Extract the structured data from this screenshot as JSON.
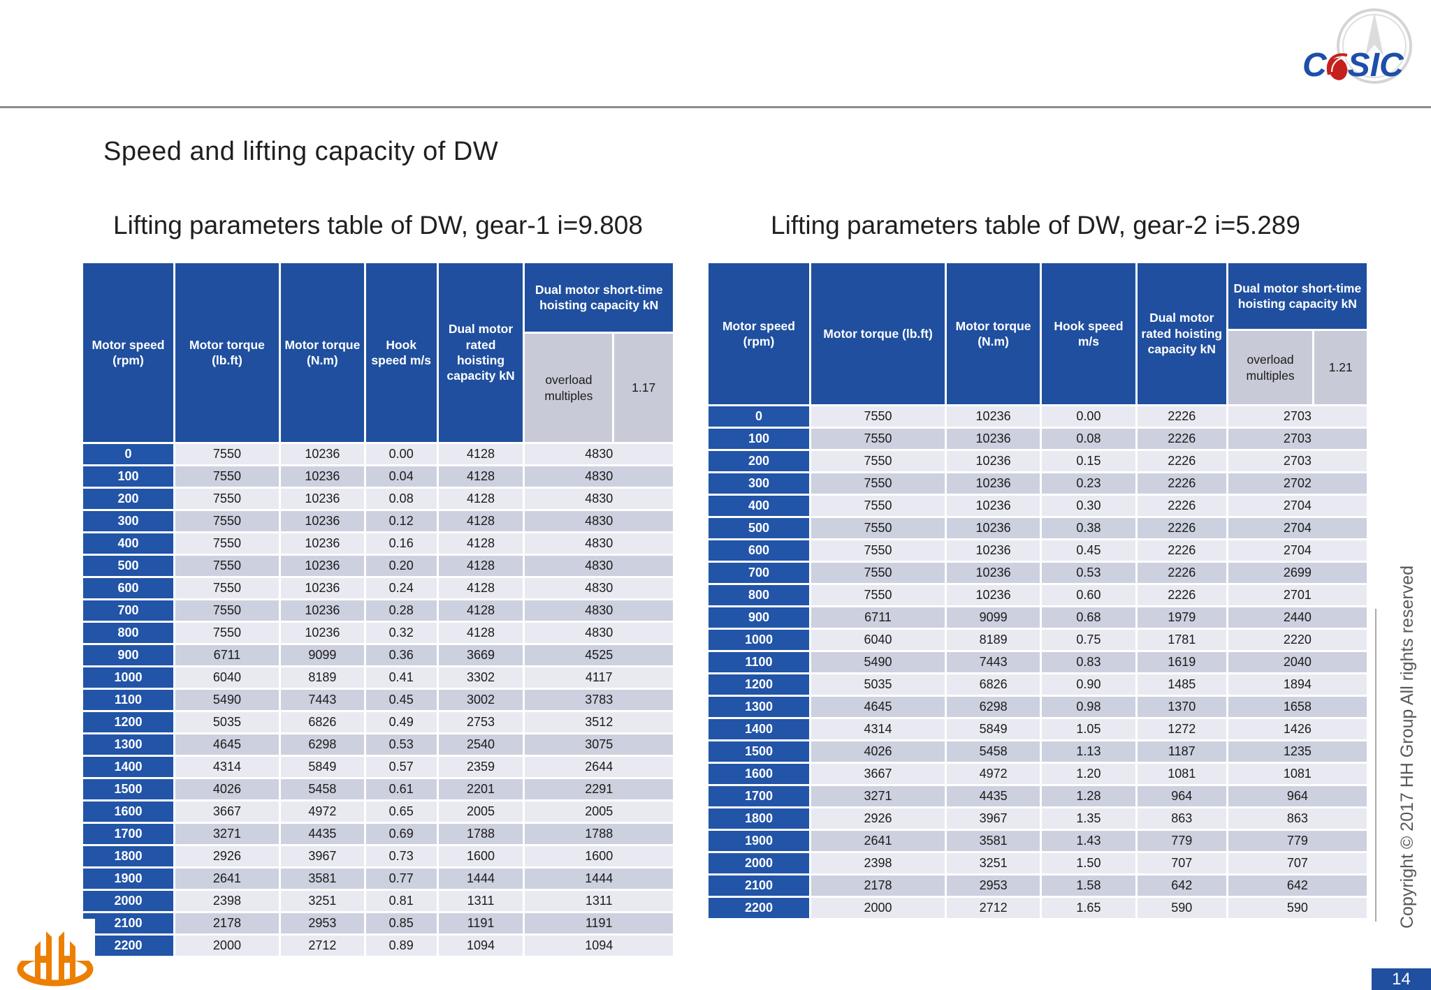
{
  "slide": {
    "title": "Speed and lifting capacity of DW",
    "page_number": "14",
    "copyright": "Copyright © 2017 HH Group All rights reserved"
  },
  "logos": {
    "casic_prefix": "C",
    "casic_suffix": "SIC"
  },
  "colors": {
    "header_blue": "#1F4F9E",
    "label_blue": "#2254A8",
    "row_light": "#E9EAF1",
    "row_dark": "#CDD0DE",
    "subheader_gray": "#C8CAD7",
    "casic_blue": "#1D4FA8",
    "casic_red": "#C5201E",
    "hh_orange": "#EC7F00"
  },
  "tables": [
    {
      "title": "Lifting parameters table of DW, gear-1 i=9.808",
      "headers": [
        "Motor speed (rpm)",
        "Motor torque (lb.ft)",
        "Motor torque (N.m)",
        "Hook speed m/s",
        "Dual motor rated hoisting capacity kN",
        "Dual motor short-time hoisting capacity kN"
      ],
      "overload_label": "overload multiples",
      "overload_value": "1.17",
      "rows": [
        [
          "0",
          "7550",
          "10236",
          "0.00",
          "4128",
          "4830"
        ],
        [
          "100",
          "7550",
          "10236",
          "0.04",
          "4128",
          "4830"
        ],
        [
          "200",
          "7550",
          "10236",
          "0.08",
          "4128",
          "4830"
        ],
        [
          "300",
          "7550",
          "10236",
          "0.12",
          "4128",
          "4830"
        ],
        [
          "400",
          "7550",
          "10236",
          "0.16",
          "4128",
          "4830"
        ],
        [
          "500",
          "7550",
          "10236",
          "0.20",
          "4128",
          "4830"
        ],
        [
          "600",
          "7550",
          "10236",
          "0.24",
          "4128",
          "4830"
        ],
        [
          "700",
          "7550",
          "10236",
          "0.28",
          "4128",
          "4830"
        ],
        [
          "800",
          "7550",
          "10236",
          "0.32",
          "4128",
          "4830"
        ],
        [
          "900",
          "6711",
          "9099",
          "0.36",
          "3669",
          "4525"
        ],
        [
          "1000",
          "6040",
          "8189",
          "0.41",
          "3302",
          "4117"
        ],
        [
          "1100",
          "5490",
          "7443",
          "0.45",
          "3002",
          "3783"
        ],
        [
          "1200",
          "5035",
          "6826",
          "0.49",
          "2753",
          "3512"
        ],
        [
          "1300",
          "4645",
          "6298",
          "0.53",
          "2540",
          "3075"
        ],
        [
          "1400",
          "4314",
          "5849",
          "0.57",
          "2359",
          "2644"
        ],
        [
          "1500",
          "4026",
          "5458",
          "0.61",
          "2201",
          "2291"
        ],
        [
          "1600",
          "3667",
          "4972",
          "0.65",
          "2005",
          "2005"
        ],
        [
          "1700",
          "3271",
          "4435",
          "0.69",
          "1788",
          "1788"
        ],
        [
          "1800",
          "2926",
          "3967",
          "0.73",
          "1600",
          "1600"
        ],
        [
          "1900",
          "2641",
          "3581",
          "0.77",
          "1444",
          "1444"
        ],
        [
          "2000",
          "2398",
          "3251",
          "0.81",
          "1311",
          "1311"
        ],
        [
          "2100",
          "2178",
          "2953",
          "0.85",
          "1191",
          "1191"
        ],
        [
          "2200",
          "2000",
          "2712",
          "0.89",
          "1094",
          "1094"
        ]
      ]
    },
    {
      "title": "Lifting parameters table of DW, gear-2 i=5.289",
      "headers": [
        "Motor speed (rpm)",
        "Motor torque (lb.ft)",
        "Motor torque (N.m)",
        "Hook speed m/s",
        "Dual motor rated hoisting capacity kN",
        "Dual motor short-time hoisting capacity kN"
      ],
      "overload_label": "overload multiples",
      "overload_value": "1.21",
      "rows": [
        [
          "0",
          "7550",
          "10236",
          "0.00",
          "2226",
          "2703"
        ],
        [
          "100",
          "7550",
          "10236",
          "0.08",
          "2226",
          "2703"
        ],
        [
          "200",
          "7550",
          "10236",
          "0.15",
          "2226",
          "2703"
        ],
        [
          "300",
          "7550",
          "10236",
          "0.23",
          "2226",
          "2702"
        ],
        [
          "400",
          "7550",
          "10236",
          "0.30",
          "2226",
          "2704"
        ],
        [
          "500",
          "7550",
          "10236",
          "0.38",
          "2226",
          "2704"
        ],
        [
          "600",
          "7550",
          "10236",
          "0.45",
          "2226",
          "2704"
        ],
        [
          "700",
          "7550",
          "10236",
          "0.53",
          "2226",
          "2699"
        ],
        [
          "800",
          "7550",
          "10236",
          "0.60",
          "2226",
          "2701"
        ],
        [
          "900",
          "6711",
          "9099",
          "0.68",
          "1979",
          "2440"
        ],
        [
          "1000",
          "6040",
          "8189",
          "0.75",
          "1781",
          "2220"
        ],
        [
          "1100",
          "5490",
          "7443",
          "0.83",
          "1619",
          "2040"
        ],
        [
          "1200",
          "5035",
          "6826",
          "0.90",
          "1485",
          "1894"
        ],
        [
          "1300",
          "4645",
          "6298",
          "0.98",
          "1370",
          "1658"
        ],
        [
          "1400",
          "4314",
          "5849",
          "1.05",
          "1272",
          "1426"
        ],
        [
          "1500",
          "4026",
          "5458",
          "1.13",
          "1187",
          "1235"
        ],
        [
          "1600",
          "3667",
          "4972",
          "1.20",
          "1081",
          "1081"
        ],
        [
          "1700",
          "3271",
          "4435",
          "1.28",
          "964",
          "964"
        ],
        [
          "1800",
          "2926",
          "3967",
          "1.35",
          "863",
          "863"
        ],
        [
          "1900",
          "2641",
          "3581",
          "1.43",
          "779",
          "779"
        ],
        [
          "2000",
          "2398",
          "3251",
          "1.50",
          "707",
          "707"
        ],
        [
          "2100",
          "2178",
          "2953",
          "1.58",
          "642",
          "642"
        ],
        [
          "2200",
          "2000",
          "2712",
          "1.65",
          "590",
          "590"
        ]
      ]
    }
  ]
}
